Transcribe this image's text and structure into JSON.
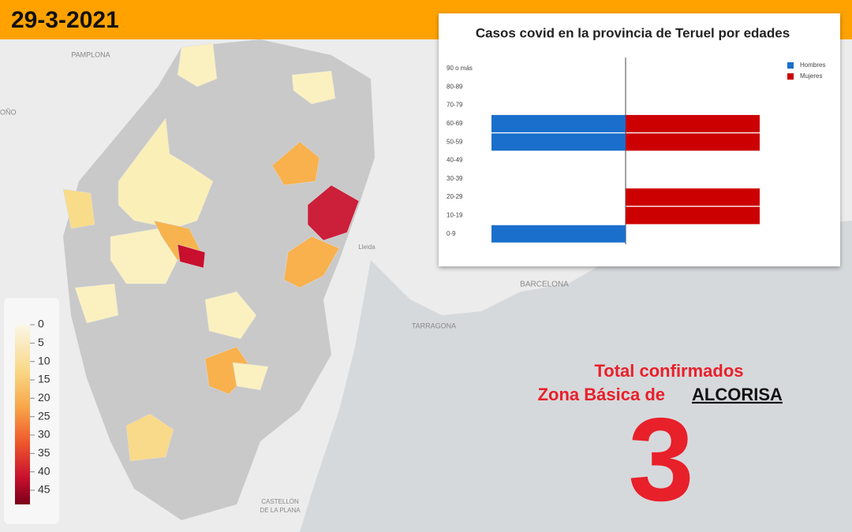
{
  "header": {
    "date": "29-3-2021"
  },
  "map": {
    "places": [
      "PAMPLONA",
      "OÑO",
      "Lleida",
      "BARCELONA",
      "TARRAGONA",
      "CASTELLÓN",
      "DE LA PLANA"
    ]
  },
  "map_legend": {
    "ticks": [
      0,
      5,
      10,
      15,
      20,
      25,
      30,
      35,
      40,
      45
    ]
  },
  "chart_data": {
    "type": "bar",
    "title": "Casos covid en la provincia de Teruel por edades",
    "categories": [
      "90 o más",
      "80-89",
      "70-79",
      "60-69",
      "50-59",
      "40-49",
      "30-39",
      "20-29",
      "10-19",
      "0-9"
    ],
    "series": [
      {
        "name": "Hombres",
        "color": "#1a6fcc",
        "values": [
          0,
          0,
          0,
          1,
          1,
          0,
          0,
          0,
          0,
          1
        ]
      },
      {
        "name": "Mujeres",
        "color": "#cc0000",
        "values": [
          0,
          0,
          0,
          1,
          1,
          0,
          0,
          1,
          1,
          0
        ]
      }
    ]
  },
  "total": {
    "line1": "Total confirmados",
    "line2": "Zona Básica de",
    "zone": "ALCORISA",
    "value": 3
  }
}
